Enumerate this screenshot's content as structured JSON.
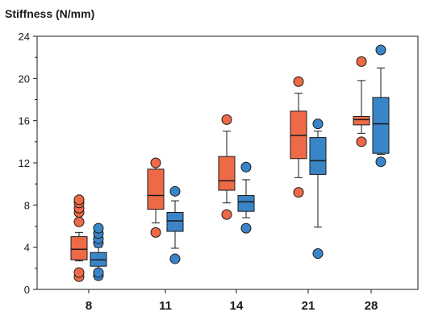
{
  "chart_data": {
    "type": "box",
    "title": "",
    "ylabel": "Stiffness (N/mm)",
    "xlabel": "",
    "ylim": [
      0,
      24
    ],
    "yticks": [
      0,
      4,
      8,
      12,
      16,
      20,
      24
    ],
    "categories": [
      "8",
      "11",
      "14",
      "21",
      "28"
    ],
    "colors": {
      "orange": "#ee6a47",
      "blue": "#3a85c7",
      "outline": "#1a1a1a"
    },
    "series": [
      {
        "color": "#ee6a47",
        "boxes": [
          {
            "category": "8",
            "whisker_low": 2.7,
            "q1": 2.8,
            "median": 3.8,
            "q3": 5.0,
            "whisker_high": 5.4,
            "outliers": [
              1.2,
              1.6,
              6.4,
              7.3,
              7.7,
              8.2,
              8.5
            ]
          },
          {
            "category": "11",
            "whisker_low": 6.3,
            "q1": 7.6,
            "median": 8.9,
            "q3": 11.4,
            "whisker_high": 12.0,
            "outliers": [
              5.4,
              12.0
            ]
          },
          {
            "category": "14",
            "whisker_low": 8.2,
            "q1": 9.4,
            "median": 10.3,
            "q3": 12.6,
            "whisker_high": 15.0,
            "outliers": [
              7.1,
              16.1
            ]
          },
          {
            "category": "21",
            "whisker_low": 10.6,
            "q1": 12.4,
            "median": 14.6,
            "q3": 16.9,
            "whisker_high": 18.6,
            "outliers": [
              9.2,
              19.7
            ]
          },
          {
            "category": "28",
            "whisker_low": 14.8,
            "q1": 15.6,
            "median": 16.1,
            "q3": 16.4,
            "whisker_high": 19.8,
            "outliers": [
              14.0,
              21.6
            ]
          }
        ]
      },
      {
        "color": "#3a85c7",
        "boxes": [
          {
            "category": "8",
            "whisker_low": 1.8,
            "q1": 2.2,
            "median": 2.8,
            "q3": 3.5,
            "whisker_high": 4.0,
            "outliers": [
              1.3,
              1.6,
              4.4,
              4.8,
              5.3,
              5.8
            ]
          },
          {
            "category": "11",
            "whisker_low": 3.9,
            "q1": 5.5,
            "median": 6.5,
            "q3": 7.3,
            "whisker_high": 8.4,
            "outliers": [
              2.9,
              9.3
            ]
          },
          {
            "category": "14",
            "whisker_low": 6.8,
            "q1": 7.4,
            "median": 8.3,
            "q3": 8.9,
            "whisker_high": 10.4,
            "outliers": [
              5.8,
              11.6
            ]
          },
          {
            "category": "21",
            "whisker_low": 5.9,
            "q1": 10.9,
            "median": 12.2,
            "q3": 14.4,
            "whisker_high": 15.0,
            "outliers": [
              3.4,
              15.7
            ]
          },
          {
            "category": "28",
            "whisker_low": 12.8,
            "q1": 12.9,
            "median": 15.7,
            "q3": 18.2,
            "whisker_high": 21.0,
            "outliers": [
              12.1,
              22.7
            ]
          }
        ]
      }
    ]
  }
}
